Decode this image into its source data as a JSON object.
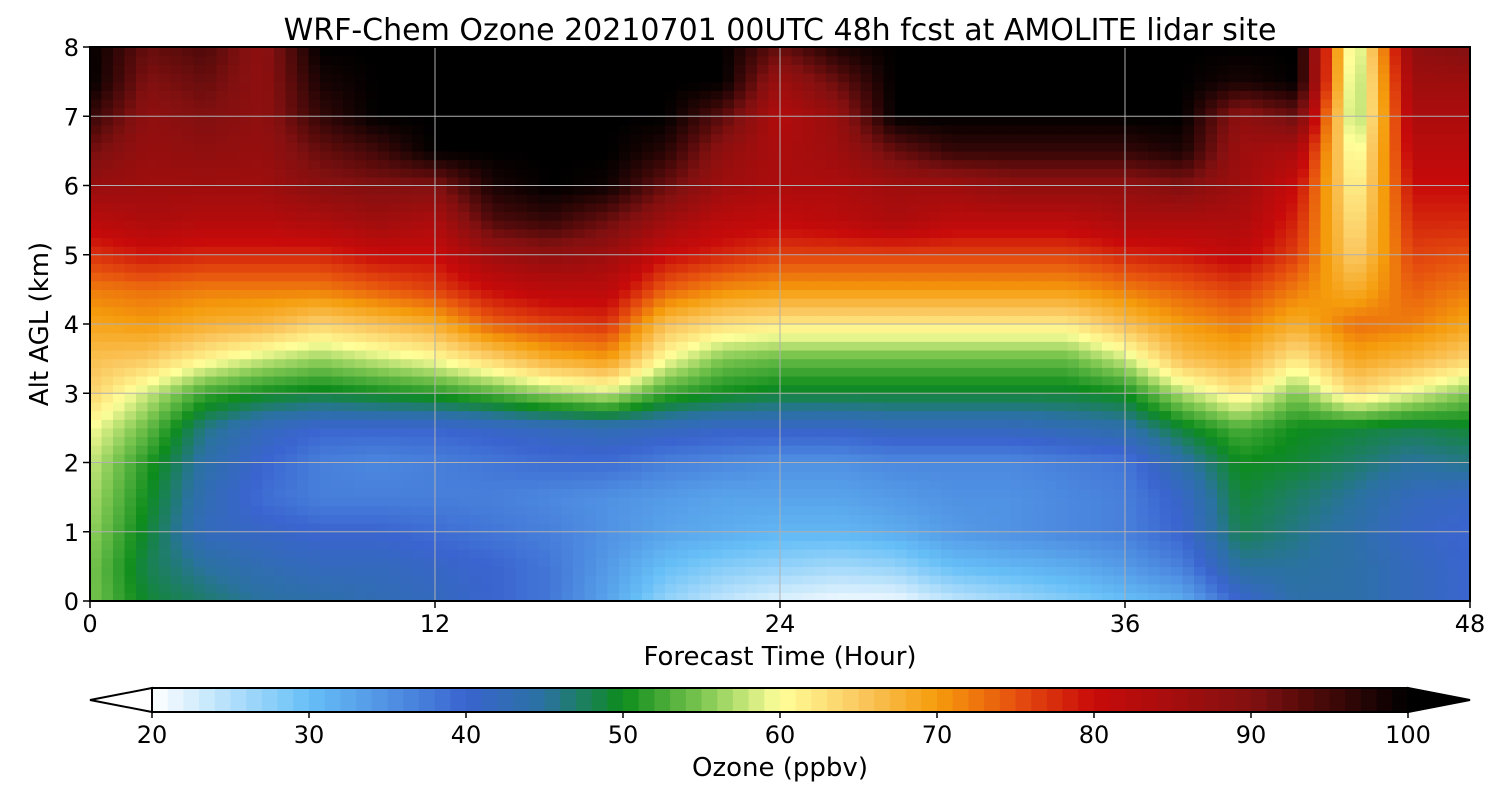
{
  "chart_data": {
    "type": "heatmap",
    "title": "WRF-Chem Ozone  20210701 00UTC 48h fcst at AMOLITE lidar site",
    "xlabel": "Forecast Time (Hour)",
    "ylabel": "Alt AGL (km)",
    "xlim": [
      0,
      48
    ],
    "ylim": [
      0,
      8
    ],
    "xticks": [
      0,
      12,
      24,
      36,
      48
    ],
    "yticks": [
      0,
      1,
      2,
      3,
      4,
      5,
      6,
      7,
      8
    ],
    "grid": true,
    "x_hours": [
      0,
      2,
      4,
      6,
      8,
      10,
      12,
      14,
      16,
      18,
      20,
      22,
      24,
      26,
      28,
      30,
      32,
      34,
      36,
      38,
      40,
      42,
      44,
      46,
      48
    ],
    "z_levels_km": [
      0,
      0.5,
      1,
      1.5,
      2,
      2.5,
      3,
      3.5,
      4,
      4.5,
      5,
      5.5,
      6,
      6.5,
      7,
      7.5,
      8
    ],
    "ozone_ppbv_rows_by_altitude": [
      [
        55,
        49,
        47,
        45,
        44,
        43,
        42,
        40,
        38,
        33,
        27,
        24,
        22,
        21,
        21,
        24,
        26,
        28,
        30,
        32,
        40,
        44,
        44,
        42,
        40
      ],
      [
        55,
        48,
        45,
        43,
        42,
        42,
        41,
        40,
        38,
        34,
        30,
        28,
        27,
        26,
        27,
        30,
        31,
        32,
        34,
        37,
        45,
        45,
        44,
        42,
        40
      ],
      [
        56,
        49,
        42,
        41,
        40,
        40,
        39,
        38,
        37,
        35,
        33,
        32,
        31,
        31,
        32,
        34,
        35,
        36,
        37,
        40,
        48,
        46,
        44,
        41,
        40
      ],
      [
        57,
        50,
        43,
        39,
        37,
        37,
        37,
        37,
        36,
        35,
        34,
        33,
        33,
        33,
        34,
        35,
        35,
        36,
        37,
        41,
        49,
        47,
        45,
        42,
        41
      ],
      [
        58,
        51,
        44,
        40,
        37,
        36,
        37,
        38,
        39,
        39,
        37,
        36,
        35,
        35,
        36,
        36,
        36,
        37,
        38,
        44,
        50,
        49,
        47,
        45,
        46
      ],
      [
        60,
        54,
        46,
        42,
        40,
        40,
        40,
        41,
        42,
        43,
        42,
        41,
        41,
        41,
        42,
        42,
        42,
        43,
        44,
        49,
        53,
        50,
        49,
        48,
        49
      ],
      [
        64,
        58,
        52,
        50,
        49,
        50,
        51,
        53,
        56,
        58,
        52,
        50,
        49,
        49,
        49,
        49,
        49,
        49,
        50,
        57,
        62,
        55,
        63,
        59,
        55
      ],
      [
        66,
        65,
        61,
        58,
        56,
        58,
        60,
        64,
        68,
        70,
        60,
        55,
        54,
        54,
        54,
        54,
        54,
        54,
        58,
        66,
        68,
        62,
        69,
        67,
        64
      ],
      [
        69,
        70,
        68,
        67,
        64,
        66,
        68,
        74,
        76,
        77,
        66,
        63,
        62,
        62,
        62,
        62,
        62,
        62,
        66,
        70,
        72,
        68,
        73,
        72,
        69
      ],
      [
        72,
        73,
        72,
        72,
        72,
        74,
        76,
        80,
        82,
        82,
        74,
        71,
        70,
        70,
        70,
        70,
        70,
        70,
        72,
        74,
        76,
        72,
        68,
        74,
        72
      ],
      [
        77,
        79,
        78,
        78,
        78,
        80,
        80,
        86,
        88,
        86,
        80,
        78,
        76,
        76,
        76,
        76,
        76,
        76,
        78,
        79,
        81,
        76,
        64,
        76,
        75
      ],
      [
        82,
        84,
        83,
        83,
        84,
        86,
        84,
        94,
        96,
        92,
        86,
        82,
        81,
        82,
        84,
        82,
        82,
        82,
        84,
        84,
        84,
        78,
        62,
        78,
        78
      ],
      [
        87,
        86,
        86,
        86,
        89,
        90,
        90,
        98,
        100,
        99,
        92,
        86,
        84,
        84,
        86,
        86,
        88,
        88,
        88,
        90,
        86,
        80,
        60,
        80,
        80
      ],
      [
        91,
        87,
        88,
        87,
        92,
        95,
        100,
        100,
        100,
        100,
        97,
        88,
        84,
        86,
        92,
        96,
        96,
        96,
        96,
        98,
        86,
        84,
        58,
        82,
        82
      ],
      [
        96,
        88,
        90,
        88,
        96,
        100,
        100,
        100,
        100,
        100,
        100,
        93,
        83,
        87,
        100,
        100,
        100,
        100,
        100,
        100,
        88,
        92,
        55,
        84,
        84
      ],
      [
        100,
        90,
        92,
        88,
        98,
        100,
        100,
        100,
        100,
        100,
        100,
        100,
        86,
        92,
        100,
        100,
        100,
        100,
        100,
        100,
        98,
        100,
        55,
        86,
        86
      ],
      [
        100,
        92,
        94,
        88,
        100,
        100,
        100,
        100,
        100,
        100,
        100,
        100,
        92,
        98,
        100,
        100,
        100,
        100,
        100,
        100,
        100,
        100,
        56,
        88,
        90
      ]
    ],
    "colorbar": {
      "label": "Ozone  (ppbv)",
      "min": 20,
      "max": 100,
      "ticks": [
        20,
        30,
        40,
        50,
        60,
        70,
        80,
        90,
        100
      ],
      "extend": "both",
      "color_stops": [
        {
          "v": 20,
          "c": "#ffffff"
        },
        {
          "v": 30,
          "c": "#66bff7"
        },
        {
          "v": 40,
          "c": "#3a64cf"
        },
        {
          "v": 45,
          "c": "#2a72a0"
        },
        {
          "v": 50,
          "c": "#0d8c1c"
        },
        {
          "v": 55,
          "c": "#7cc650"
        },
        {
          "v": 60,
          "c": "#ffff9a"
        },
        {
          "v": 65,
          "c": "#fbc860"
        },
        {
          "v": 70,
          "c": "#f59c0c"
        },
        {
          "v": 75,
          "c": "#e6500e"
        },
        {
          "v": 80,
          "c": "#c80a0a"
        },
        {
          "v": 90,
          "c": "#821010"
        },
        {
          "v": 100,
          "c": "#000000"
        }
      ]
    }
  }
}
